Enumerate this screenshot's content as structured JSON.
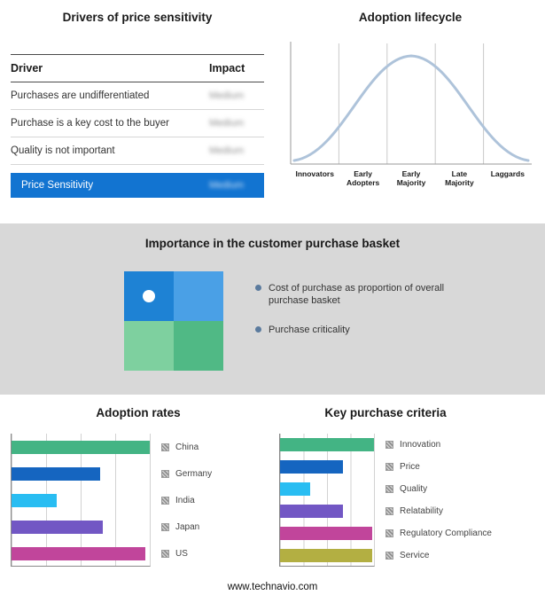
{
  "footer": {
    "url": "www.technavio.com"
  },
  "drivers": {
    "title": "Drivers of price sensitivity",
    "col_driver": "Driver",
    "col_impact": "Impact",
    "rows": [
      {
        "driver": "Purchases are undifferentiated",
        "impact": "Medium"
      },
      {
        "driver": "Purchase is a key cost to the buyer",
        "impact": "Medium"
      },
      {
        "driver": "Quality is not important",
        "impact": "Medium"
      }
    ],
    "summary": {
      "driver": "Price Sensitivity",
      "impact": "Medium"
    },
    "highlight_color": "#1274d1"
  },
  "basket": {
    "title": "Importance in the customer purchase basket",
    "bullets": [
      "Cost of purchase as proportion of overall purchase basket",
      "Purchase criticality"
    ],
    "quad_colors": [
      "#1e82d4",
      "#4aa0e6",
      "#7ed09f",
      "#50b985"
    ],
    "bullet_dot_color": "#5b7b9e"
  },
  "chart_data": [
    {
      "type": "line",
      "title": "Adoption lifecycle",
      "categories": [
        "Innovators",
        "Early Adopters",
        "Early Majority",
        "Late Majority",
        "Laggards"
      ],
      "shape": "bell_curve",
      "curve_color": "#aec3da",
      "note": "Bell-shaped adoption curve peaking at Early Majority"
    },
    {
      "type": "bar",
      "title": "Adoption rates",
      "orientation": "horizontal",
      "categories": [
        "China",
        "Germany",
        "India",
        "Japan",
        "US"
      ],
      "values": [
        100,
        64,
        33,
        66,
        97
      ],
      "colors": [
        "#43b484",
        "#1565c0",
        "#29bdf2",
        "#7257c4",
        "#c1459b"
      ],
      "xlim": [
        0,
        100
      ],
      "grid": true,
      "legend_position": "right"
    },
    {
      "type": "bar",
      "title": "Key purchase criteria",
      "orientation": "horizontal",
      "categories": [
        "Innovation",
        "Price",
        "Quality",
        "Relatability",
        "Regulatory Compliance",
        "Service"
      ],
      "values": [
        100,
        67,
        32,
        67,
        98,
        98
      ],
      "colors": [
        "#43b484",
        "#1565c0",
        "#29bdf2",
        "#7257c4",
        "#c1459b",
        "#b3af42"
      ],
      "xlim": [
        0,
        100
      ],
      "grid": true,
      "legend_position": "right"
    }
  ]
}
